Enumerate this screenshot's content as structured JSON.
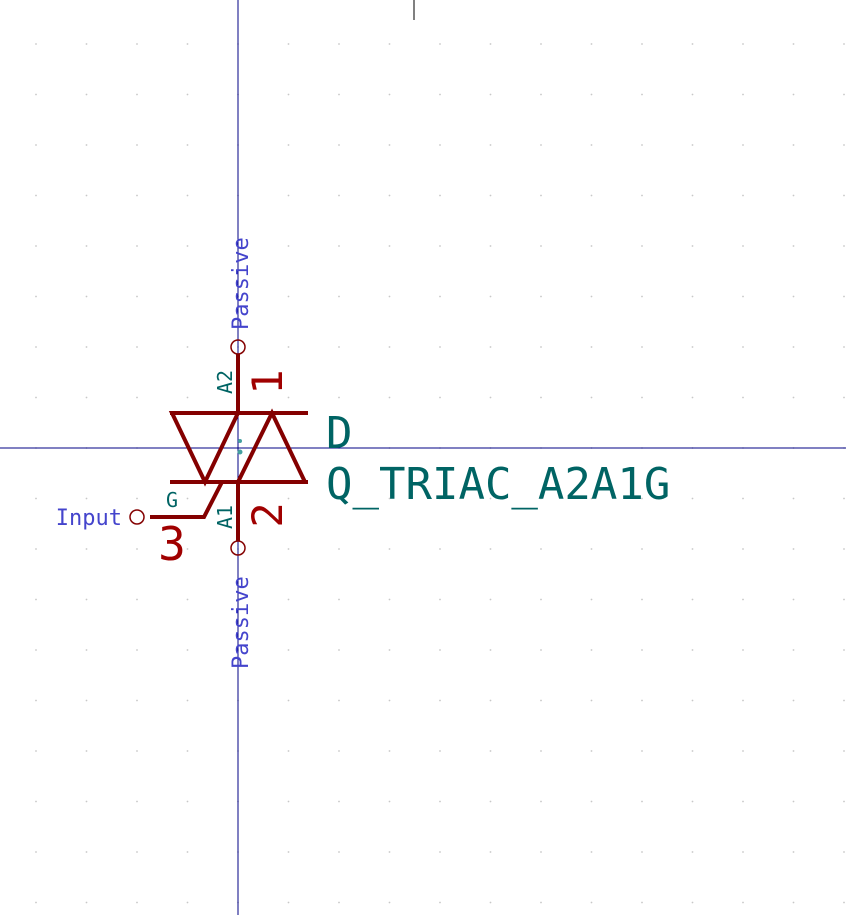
{
  "symbol": {
    "reference": "D",
    "value": "Q_TRIAC_A2A1G"
  },
  "pins": [
    {
      "number": "1",
      "name": "A2",
      "type": "Passive"
    },
    {
      "number": "2",
      "name": "A1",
      "type": "Passive"
    },
    {
      "number": "3",
      "name": "G",
      "type": "Input"
    }
  ],
  "colors": {
    "background": "#ffffff",
    "body": "#840000",
    "pin_number": "#a00000",
    "pin_name": "#006464",
    "field_text": "#006464",
    "electrical_type": "#4444cc",
    "axis": "#000084",
    "grid": "#c8c8c8"
  }
}
